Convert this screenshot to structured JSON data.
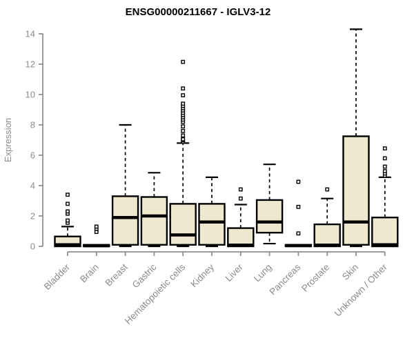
{
  "chart_data": {
    "type": "boxplot",
    "title": "ENSG00000211667 - IGLV3-12",
    "ylabel": "Expression",
    "xlabel": "",
    "ylim": [
      0,
      14
    ],
    "ytick_step": 2,
    "grid": false,
    "legend": "none",
    "categories": [
      "Bladder",
      "Brain",
      "Breast",
      "Gastric",
      "Hematopoietic cells",
      "Kidney",
      "Liver",
      "Lung",
      "Pancreas",
      "Prostate",
      "Skin",
      "Unknown / Other"
    ],
    "boxes": [
      {
        "category": "Bladder",
        "q1": 0,
        "median": 0.1,
        "q3": 0.65,
        "whisker_low": 0,
        "whisker_high": 1.3,
        "outliers": [
          1.55,
          1.7,
          2.15,
          2.3,
          2.8,
          3.4
        ]
      },
      {
        "category": "Brain",
        "q1": 0,
        "median": 0.04,
        "q3": 0.1,
        "whisker_low": 0,
        "whisker_high": 0.12,
        "outliers": [
          0.95,
          1.15,
          1.3
        ]
      },
      {
        "category": "Breast",
        "q1": 0.1,
        "median": 1.9,
        "q3": 3.3,
        "whisker_low": 0,
        "whisker_high": 8.0,
        "outliers": []
      },
      {
        "category": "Gastric",
        "q1": 0.1,
        "median": 2.0,
        "q3": 3.25,
        "whisker_low": 0,
        "whisker_high": 4.85,
        "outliers": []
      },
      {
        "category": "Hematopoietic cells",
        "q1": 0.1,
        "median": 0.75,
        "q3": 2.8,
        "whisker_low": 0,
        "whisker_high": 6.8,
        "outliers": [
          6.9,
          7.0,
          7.05,
          7.3,
          7.6,
          7.9,
          8.2,
          8.35,
          8.5,
          8.65,
          8.8,
          8.95,
          9.1,
          9.25,
          9.4,
          9.95,
          10.4,
          12.15
        ]
      },
      {
        "category": "Kidney",
        "q1": 0.1,
        "median": 1.6,
        "q3": 2.8,
        "whisker_low": 0,
        "whisker_high": 4.55,
        "outliers": []
      },
      {
        "category": "Liver",
        "q1": 0,
        "median": 0.08,
        "q3": 1.2,
        "whisker_low": 0,
        "whisker_high": 2.75,
        "outliers": [
          3.15,
          3.75
        ]
      },
      {
        "category": "Lung",
        "q1": 0.9,
        "median": 1.6,
        "q3": 3.05,
        "whisker_low": 0.18,
        "whisker_high": 5.4,
        "outliers": []
      },
      {
        "category": "Pancreas",
        "q1": 0,
        "median": 0.05,
        "q3": 0.1,
        "whisker_low": 0,
        "whisker_high": 0.12,
        "outliers": [
          0.85,
          2.6,
          4.25
        ]
      },
      {
        "category": "Prostate",
        "q1": 0,
        "median": 0.08,
        "q3": 1.45,
        "whisker_low": 0,
        "whisker_high": 3.15,
        "outliers": [
          3.75
        ]
      },
      {
        "category": "Skin",
        "q1": 0.1,
        "median": 1.6,
        "q3": 7.25,
        "whisker_low": 0,
        "whisker_high": 14.3,
        "outliers": []
      },
      {
        "category": "Unknown / Other",
        "q1": 0,
        "median": 0.1,
        "q3": 1.9,
        "whisker_low": 0,
        "whisker_high": 4.55,
        "outliers": [
          4.65,
          4.8,
          4.95,
          5.25,
          5.8,
          6.45
        ]
      }
    ],
    "colors": {
      "box_fill": "#EDE8CE",
      "box_stroke": "#000000",
      "median": "#000000",
      "whisker": "#000000",
      "outlier": "#000000",
      "axis": "#8B8B8B",
      "title": "#000000",
      "background": "#FFFFFF"
    }
  }
}
